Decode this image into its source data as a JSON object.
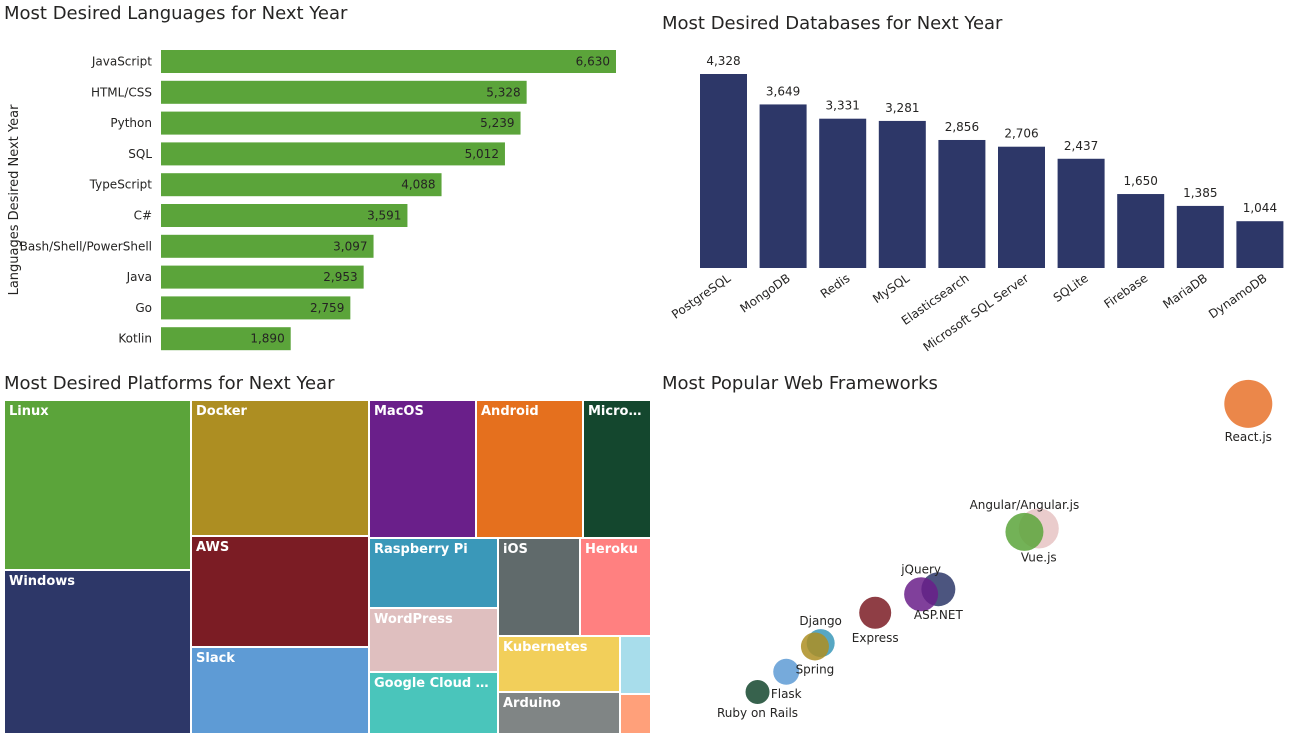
{
  "colors": {
    "language_bar": "#5BA43A",
    "database_bar": "#2D3768",
    "text": "#252423",
    "axis_text": "#252423"
  },
  "chart_data": [
    {
      "id": "languages",
      "type": "bar",
      "orientation": "horizontal",
      "title": "Most Desired Languages for Next Year",
      "ylabel": "Languages Desired Next Year",
      "categories": [
        "JavaScript",
        "HTML/CSS",
        "Python",
        "SQL",
        "TypeScript",
        "C#",
        "Bash/Shell/PowerShell",
        "Java",
        "Go",
        "Kotlin"
      ],
      "values": [
        6630,
        5328,
        5239,
        5012,
        4088,
        3591,
        3097,
        2953,
        2759,
        1890
      ],
      "value_labels": [
        "6,630",
        "5,328",
        "5,239",
        "5,012",
        "4,088",
        "3,591",
        "3,097",
        "2,953",
        "2,759",
        "1,890"
      ],
      "xlim": [
        0,
        6630
      ]
    },
    {
      "id": "databases",
      "type": "bar",
      "orientation": "vertical",
      "title": "Most Desired Databases for Next Year",
      "categories": [
        "PostgreSQL",
        "MongoDB",
        "Redis",
        "MySQL",
        "Elasticsearch",
        "Microsoft SQL Server",
        "SQLite",
        "Firebase",
        "MariaDB",
        "DynamoDB"
      ],
      "values": [
        4328,
        3649,
        3331,
        3281,
        2856,
        2706,
        2437,
        1650,
        1385,
        1044
      ],
      "value_labels": [
        "4,328",
        "3,649",
        "3,331",
        "3,281",
        "2,856",
        "2,706",
        "2,437",
        "1,650",
        "1,385",
        "1,044"
      ],
      "ylim": [
        0,
        4328
      ]
    },
    {
      "id": "platforms",
      "type": "treemap",
      "title": "Most Desired Platforms for Next Year",
      "nodes": [
        {
          "label": "Linux",
          "color": "#5BA43A"
        },
        {
          "label": "Windows",
          "color": "#2D3768"
        },
        {
          "label": "Docker",
          "color": "#AD8E22"
        },
        {
          "label": "AWS",
          "color": "#7B1C24"
        },
        {
          "label": "Slack",
          "color": "#5E9BD5"
        },
        {
          "label": "MacOS",
          "color": "#6A1F8A"
        },
        {
          "label": "Android",
          "color": "#E5701E"
        },
        {
          "label": "Micros...",
          "color": "#14472E"
        },
        {
          "label": "Raspberry Pi",
          "color": "#3A98B9"
        },
        {
          "label": "iOS",
          "color": "#606A6B"
        },
        {
          "label": "Heroku",
          "color": "#FF8080"
        },
        {
          "label": "WordPress",
          "color": "#DFBFBF"
        },
        {
          "label": "Kubernetes",
          "color": "#F2CF5A"
        },
        {
          "label": "Google Cloud Pl...",
          "color": "#4AC5BB"
        },
        {
          "label": "Arduino",
          "color": "#808585"
        },
        {
          "label": "",
          "color": "#A8DDEB"
        },
        {
          "label": "",
          "color": "#FFA07A"
        }
      ]
    },
    {
      "id": "frameworks",
      "type": "scatter",
      "title": "Most Popular Web Frameworks",
      "points": [
        {
          "label": "React.js",
          "x": 95,
          "y": 95,
          "size": 24,
          "color": "#E8722A"
        },
        {
          "label": "Vue.js",
          "x": 58.5,
          "y": 58,
          "size": 20,
          "color": "#E6C3C3"
        },
        {
          "label": "Angular/Angular.js",
          "x": 56,
          "y": 57,
          "size": 19,
          "color": "#5BA43A"
        },
        {
          "label": "ASP.NET",
          "x": 41,
          "y": 40,
          "size": 17,
          "color": "#2D3768"
        },
        {
          "label": "jQuery",
          "x": 38,
          "y": 38.5,
          "size": 17,
          "color": "#6A1F8A"
        },
        {
          "label": "Express",
          "x": 30,
          "y": 33,
          "size": 16,
          "color": "#7B1C24"
        },
        {
          "label": "Django",
          "x": 20.5,
          "y": 24,
          "size": 14,
          "color": "#3A98B9"
        },
        {
          "label": "Spring",
          "x": 19.5,
          "y": 23,
          "size": 14,
          "color": "#AD8E22"
        },
        {
          "label": "Flask",
          "x": 14.5,
          "y": 15.5,
          "size": 13,
          "color": "#5E9BD5"
        },
        {
          "label": "Ruby on Rails",
          "x": 9.5,
          "y": 9.5,
          "size": 12,
          "color": "#14472E"
        }
      ],
      "xlim": [
        0,
        100
      ],
      "ylim": [
        0,
        100
      ]
    }
  ]
}
